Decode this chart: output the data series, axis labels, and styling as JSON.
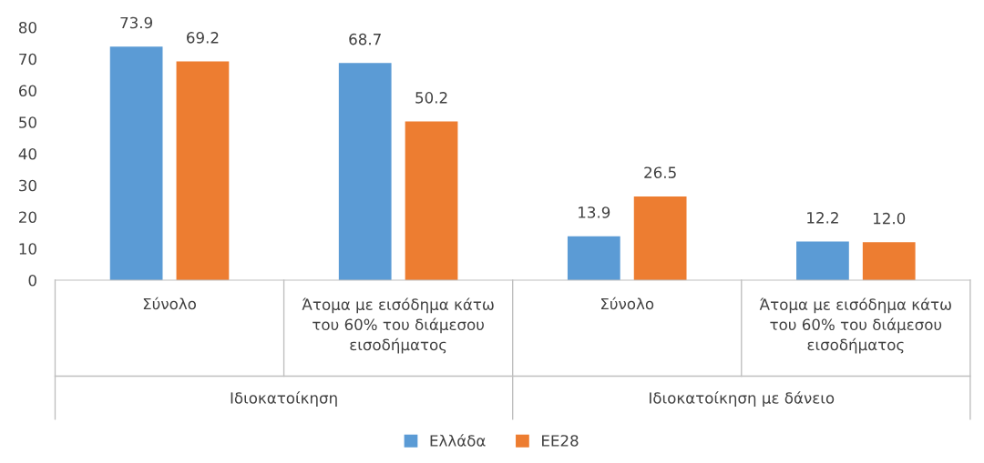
{
  "chart_data": {
    "type": "bar",
    "categories": [
      "Σύνολο",
      "Άτομα με εισόδημα κάτω\nτου 60% του διάμεσου\nεισοδήματος",
      "Σύνολο",
      "Άτομα με εισόδημα κάτω\nτου 60% του διάμεσου\nεισοδήματος"
    ],
    "series": [
      {
        "name": "Ελλάδα",
        "color": "#5b9bd5",
        "values": [
          73.9,
          68.7,
          13.9,
          12.2
        ],
        "value_labels": [
          "73.9",
          "68.7",
          "13.9",
          "12.2"
        ]
      },
      {
        "name": "ΕΕ28",
        "color": "#ed7d31",
        "values": [
          69.2,
          50.2,
          26.5,
          12.0
        ],
        "value_labels": [
          "69.2",
          "50.2",
          "26.5",
          "12.0"
        ]
      }
    ],
    "annotations": [
      "Ιδιοκατοίκηση",
      "Ιδιοκατοίκηση με δάνειο"
    ],
    "ylim": [
      0,
      80
    ],
    "yticks": [
      0,
      10,
      20,
      30,
      40,
      50,
      60,
      70,
      80
    ],
    "grid": false,
    "legend": "bottom"
  }
}
